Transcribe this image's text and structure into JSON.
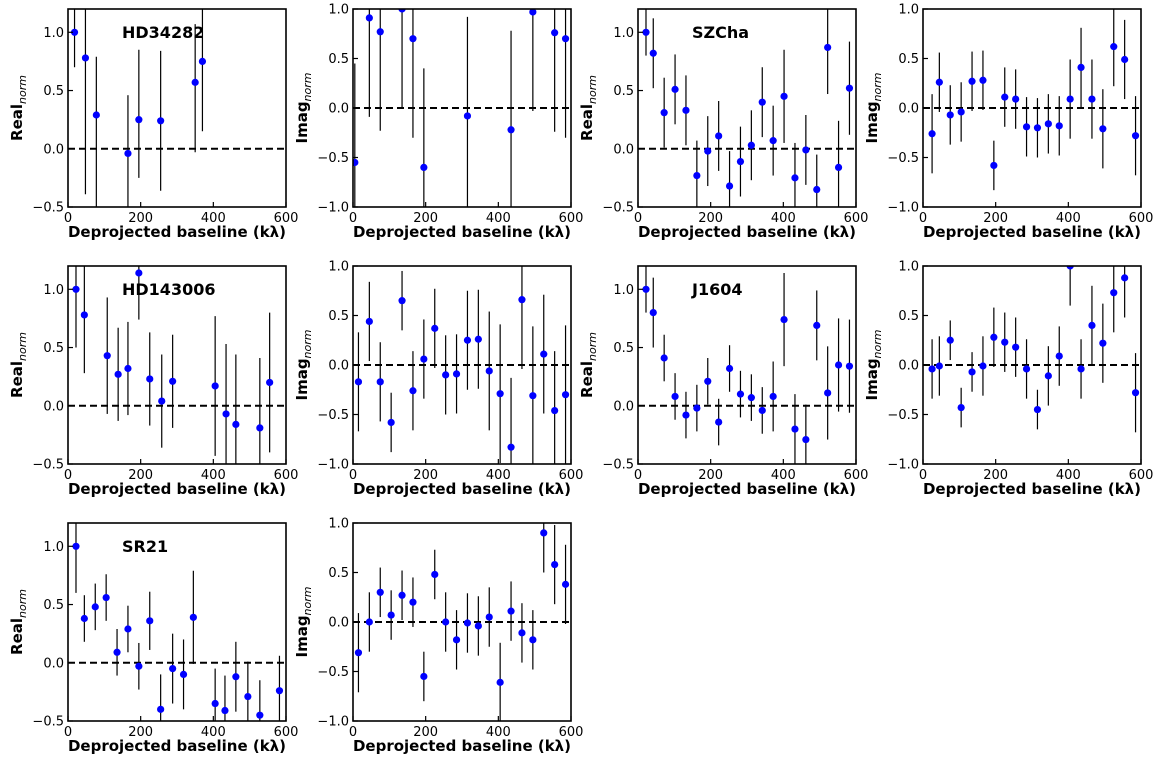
{
  "chart_data": [
    {
      "type": "scatter",
      "row": 0,
      "col": 0,
      "label": "HD34282",
      "ylabel": "Real",
      "ylabel_sub": "norm",
      "xlabel": "Deprojected baseline (kλ)",
      "xlim": [
        0,
        600
      ],
      "ylim": [
        -0.5,
        1.2
      ],
      "xticks": [
        0,
        200,
        400,
        600
      ],
      "yticks": [
        -0.5,
        0.0,
        0.5,
        1.0
      ],
      "xtick_labels": [
        "0",
        "200",
        "400",
        "600"
      ],
      "ytick_labels": [
        "−0.5",
        "0.0",
        "0.5",
        "1.0"
      ],
      "marker_color": "#0000ff",
      "x": [
        18,
        48,
        78,
        165,
        195,
        255,
        350,
        370
      ],
      "y": [
        1.0,
        0.78,
        0.29,
        -0.04,
        0.25,
        0.24,
        0.57,
        0.75
      ],
      "err_lo": [
        0.3,
        1.17,
        1.0,
        0.5,
        0.5,
        0.6,
        0.6,
        0.6
      ],
      "err_hi": [
        0.5,
        0.5,
        0.5,
        0.5,
        0.6,
        0.6,
        0.5,
        0.5
      ]
    },
    {
      "type": "scatter",
      "row": 0,
      "col": 1,
      "label": "",
      "ylabel": "Imag",
      "ylabel_sub": "norm",
      "xlabel": "Deprojected baseline (kλ)",
      "xlim": [
        0,
        600
      ],
      "ylim": [
        -1.0,
        1.0
      ],
      "xticks": [
        0,
        200,
        400,
        600
      ],
      "yticks": [
        -1.0,
        -0.5,
        0.0,
        0.5,
        1.0
      ],
      "xtick_labels": [
        "0",
        "200",
        "400",
        "600"
      ],
      "ytick_labels": [
        "−1.0",
        "−0.5",
        "0.0",
        "0.5",
        "1.0"
      ],
      "marker_color": "#0000ff",
      "x": [
        5,
        45,
        75,
        135,
        165,
        195,
        315,
        435,
        495,
        555,
        585
      ],
      "y": [
        -0.55,
        0.91,
        0.77,
        1.0,
        0.7,
        -0.6,
        -0.08,
        -0.22,
        0.97,
        0.76,
        0.7
      ],
      "err_lo": [
        1.0,
        1.0,
        1.0,
        1.0,
        1.0,
        1.0,
        1.0,
        1.0,
        1.0,
        1.0,
        1.0
      ],
      "err_hi": [
        1.0,
        1.0,
        1.0,
        1.0,
        1.0,
        1.0,
        1.0,
        1.0,
        1.0,
        1.0,
        1.0
      ]
    },
    {
      "type": "scatter",
      "row": 0,
      "col": 2,
      "label": "SZCha",
      "ylabel": "Real",
      "ylabel_sub": "norm",
      "xlabel": "Deprojected baseline (kλ)",
      "xlim": [
        0,
        600
      ],
      "ylim": [
        -0.5,
        1.2
      ],
      "xticks": [
        0,
        200,
        400,
        600
      ],
      "yticks": [
        -0.5,
        0.0,
        0.5,
        1.0
      ],
      "xtick_labels": [
        "0",
        "200",
        "400",
        "600"
      ],
      "ytick_labels": [
        "−0.5",
        "0.0",
        "0.5",
        "1.0"
      ],
      "marker_color": "#0000ff",
      "x": [
        22,
        42,
        72,
        102,
        132,
        162,
        192,
        222,
        252,
        282,
        312,
        342,
        372,
        402,
        432,
        462,
        492,
        522,
        552,
        582
      ],
      "y": [
        1.0,
        0.82,
        0.31,
        0.51,
        0.33,
        -0.23,
        -0.02,
        0.11,
        -0.32,
        -0.11,
        0.03,
        0.4,
        0.07,
        0.45,
        -0.25,
        -0.01,
        -0.35,
        0.87,
        -0.16,
        0.52
      ],
      "err_lo": [
        0.2,
        0.3,
        0.3,
        0.3,
        0.3,
        0.3,
        0.3,
        0.3,
        0.3,
        0.3,
        0.3,
        0.3,
        0.3,
        0.4,
        0.3,
        0.3,
        0.3,
        0.4,
        0.4,
        0.4
      ],
      "err_hi": [
        0.2,
        0.3,
        0.3,
        0.3,
        0.3,
        0.3,
        0.3,
        0.3,
        0.3,
        0.3,
        0.3,
        0.3,
        0.3,
        0.4,
        0.3,
        0.3,
        0.3,
        0.4,
        0.4,
        0.4
      ]
    },
    {
      "type": "scatter",
      "row": 0,
      "col": 3,
      "label": "",
      "ylabel": "Imag",
      "ylabel_sub": "norm",
      "xlabel": "Deprojected baseline (kλ)",
      "xlim": [
        0,
        600
      ],
      "ylim": [
        -1.0,
        1.0
      ],
      "xticks": [
        0,
        200,
        400,
        600
      ],
      "yticks": [
        -1.0,
        -0.5,
        0.0,
        0.5,
        1.0
      ],
      "xtick_labels": [
        "0",
        "200",
        "400",
        "600"
      ],
      "ytick_labels": [
        "−1.0",
        "−0.5",
        "0.0",
        "0.5",
        "1.0"
      ],
      "marker_color": "#0000ff",
      "x": [
        25,
        45,
        75,
        105,
        135,
        165,
        195,
        225,
        255,
        285,
        315,
        345,
        375,
        405,
        435,
        465,
        495,
        525,
        555,
        585
      ],
      "y": [
        -0.26,
        0.26,
        -0.07,
        -0.04,
        0.27,
        0.28,
        -0.58,
        0.11,
        0.09,
        -0.19,
        -0.2,
        -0.16,
        -0.18,
        0.09,
        0.41,
        0.09,
        -0.21,
        0.62,
        0.49,
        -0.28
      ],
      "err_lo": [
        0.4,
        0.3,
        0.3,
        0.3,
        0.3,
        0.3,
        0.25,
        0.3,
        0.3,
        0.3,
        0.3,
        0.3,
        0.3,
        0.4,
        0.4,
        0.4,
        0.4,
        0.4,
        0.4,
        0.4
      ],
      "err_hi": [
        0.4,
        0.3,
        0.3,
        0.3,
        0.3,
        0.3,
        0.25,
        0.3,
        0.3,
        0.3,
        0.3,
        0.3,
        0.3,
        0.4,
        0.4,
        0.4,
        0.4,
        0.4,
        0.4,
        0.4
      ]
    },
    {
      "type": "scatter",
      "row": 1,
      "col": 0,
      "label": "HD143006",
      "ylabel": "Real",
      "ylabel_sub": "norm",
      "xlabel": "Deprojected baseline (kλ)",
      "xlim": [
        0,
        600
      ],
      "ylim": [
        -0.5,
        1.2
      ],
      "xticks": [
        0,
        200,
        400,
        600
      ],
      "yticks": [
        -0.5,
        0.0,
        0.5,
        1.0
      ],
      "xtick_labels": [
        "0",
        "200",
        "400",
        "600"
      ],
      "ytick_labels": [
        "−0.5",
        "0.0",
        "0.5",
        "1.0"
      ],
      "marker_color": "#0000ff",
      "x": [
        22,
        45,
        108,
        138,
        165,
        195,
        225,
        258,
        288,
        405,
        435,
        462,
        528,
        555
      ],
      "y": [
        1.0,
        0.78,
        0.43,
        0.27,
        0.32,
        1.14,
        0.23,
        0.04,
        0.21,
        0.17,
        -0.07,
        -0.16,
        -0.19,
        0.2
      ],
      "err_lo": [
        0.5,
        0.5,
        0.5,
        0.4,
        0.4,
        0.4,
        0.4,
        0.4,
        0.4,
        0.6,
        0.6,
        0.6,
        0.6,
        0.6
      ],
      "err_hi": [
        0.5,
        0.5,
        0.5,
        0.4,
        0.4,
        0.4,
        0.4,
        0.4,
        0.4,
        0.6,
        0.6,
        0.6,
        0.6,
        0.6
      ]
    },
    {
      "type": "scatter",
      "row": 1,
      "col": 1,
      "label": "",
      "ylabel": "Imag",
      "ylabel_sub": "norm",
      "xlabel": "Deprojected baseline (kλ)",
      "xlim": [
        0,
        600
      ],
      "ylim": [
        -1.0,
        1.0
      ],
      "xticks": [
        0,
        200,
        400,
        600
      ],
      "yticks": [
        -1.0,
        -0.5,
        0.0,
        0.5,
        1.0
      ],
      "xtick_labels": [
        "0",
        "200",
        "400",
        "600"
      ],
      "ytick_labels": [
        "−1.0",
        "−0.5",
        "0.0",
        "0.5",
        "1.0"
      ],
      "marker_color": "#0000ff",
      "x": [
        15,
        45,
        75,
        105,
        135,
        165,
        195,
        225,
        255,
        285,
        315,
        345,
        375,
        405,
        435,
        465,
        495,
        525,
        555,
        585
      ],
      "y": [
        -0.17,
        0.44,
        -0.17,
        -0.58,
        0.65,
        -0.26,
        0.06,
        0.37,
        -0.1,
        -0.09,
        0.25,
        0.26,
        -0.06,
        -0.29,
        -0.83,
        0.66,
        -0.31,
        0.11,
        -0.46,
        -0.3
      ],
      "err_lo": [
        0.5,
        0.4,
        0.4,
        0.3,
        0.3,
        0.4,
        0.4,
        0.4,
        0.4,
        0.4,
        0.5,
        0.5,
        0.6,
        0.7,
        0.7,
        0.7,
        0.7,
        0.6,
        0.6,
        0.7
      ],
      "err_hi": [
        0.5,
        0.4,
        0.4,
        0.3,
        0.3,
        0.4,
        0.4,
        0.4,
        0.4,
        0.4,
        0.5,
        0.5,
        0.6,
        0.7,
        0.7,
        0.7,
        0.7,
        0.6,
        0.6,
        0.7
      ]
    },
    {
      "type": "scatter",
      "row": 1,
      "col": 2,
      "label": "J1604",
      "ylabel": "Real",
      "ylabel_sub": "norm",
      "xlabel": "Deprojected baseline (kλ)",
      "xlim": [
        0,
        600
      ],
      "ylim": [
        -0.5,
        1.2
      ],
      "xticks": [
        0,
        200,
        400,
        600
      ],
      "yticks": [
        -0.5,
        0.0,
        0.5,
        1.0
      ],
      "xtick_labels": [
        "0",
        "200",
        "400",
        "600"
      ],
      "ytick_labels": [
        "−0.5",
        "0.0",
        "0.5",
        "1.0"
      ],
      "marker_color": "#0000ff",
      "x": [
        22,
        42,
        72,
        102,
        132,
        162,
        192,
        222,
        252,
        282,
        312,
        342,
        372,
        402,
        432,
        462,
        492,
        522,
        552,
        582
      ],
      "y": [
        1.0,
        0.8,
        0.41,
        0.08,
        -0.08,
        -0.02,
        0.21,
        -0.14,
        0.32,
        0.1,
        0.07,
        -0.04,
        0.08,
        0.74,
        -0.2,
        -0.29,
        0.69,
        0.11,
        0.35,
        0.34
      ],
      "err_lo": [
        0.2,
        0.3,
        0.2,
        0.2,
        0.2,
        0.2,
        0.2,
        0.2,
        0.2,
        0.2,
        0.2,
        0.2,
        0.3,
        0.4,
        0.3,
        0.3,
        0.3,
        0.4,
        0.4,
        0.4
      ],
      "err_hi": [
        0.2,
        0.3,
        0.2,
        0.2,
        0.2,
        0.2,
        0.2,
        0.2,
        0.2,
        0.2,
        0.2,
        0.2,
        0.3,
        0.4,
        0.3,
        0.3,
        0.3,
        0.4,
        0.4,
        0.4
      ]
    },
    {
      "type": "scatter",
      "row": 1,
      "col": 3,
      "label": "",
      "ylabel": "Imag",
      "ylabel_sub": "norm",
      "xlabel": "Deprojected baseline (kλ)",
      "xlim": [
        0,
        600
      ],
      "ylim": [
        -1.0,
        1.0
      ],
      "xticks": [
        0,
        200,
        400,
        600
      ],
      "yticks": [
        -1.0,
        -0.5,
        0.0,
        0.5,
        1.0
      ],
      "xtick_labels": [
        "0",
        "200",
        "400",
        "600"
      ],
      "ytick_labels": [
        "−1.0",
        "−0.5",
        "0.0",
        "0.5",
        "1.0"
      ],
      "marker_color": "#0000ff",
      "x": [
        25,
        45,
        75,
        105,
        135,
        165,
        195,
        225,
        255,
        285,
        315,
        345,
        375,
        405,
        435,
        465,
        495,
        525,
        555,
        585
      ],
      "y": [
        -0.04,
        -0.01,
        0.25,
        -0.43,
        -0.07,
        -0.01,
        0.28,
        0.23,
        0.18,
        -0.04,
        -0.45,
        -0.11,
        0.09,
        1.0,
        -0.04,
        0.4,
        0.22,
        0.73,
        0.88,
        -0.28
      ],
      "err_lo": [
        0.3,
        0.3,
        0.2,
        0.2,
        0.2,
        0.3,
        0.3,
        0.3,
        0.3,
        0.3,
        0.2,
        0.3,
        0.3,
        0.4,
        0.3,
        0.4,
        0.4,
        0.4,
        0.4,
        0.4
      ],
      "err_hi": [
        0.3,
        0.3,
        0.2,
        0.2,
        0.2,
        0.3,
        0.3,
        0.3,
        0.3,
        0.3,
        0.2,
        0.3,
        0.3,
        0.4,
        0.3,
        0.4,
        0.4,
        0.4,
        0.4,
        0.4
      ]
    },
    {
      "type": "scatter",
      "row": 2,
      "col": 0,
      "label": "SR21",
      "ylabel": "Real",
      "ylabel_sub": "norm",
      "xlabel": "Deprojected baseline (kλ)",
      "xlim": [
        0,
        600
      ],
      "ylim": [
        -0.5,
        1.2
      ],
      "xticks": [
        0,
        200,
        400,
        600
      ],
      "yticks": [
        -0.5,
        0.0,
        0.5,
        1.0
      ],
      "xtick_labels": [
        "0",
        "200",
        "400",
        "600"
      ],
      "ytick_labels": [
        "−0.5",
        "0.0",
        "0.5",
        "1.0"
      ],
      "marker_color": "#0000ff",
      "x": [
        22,
        45,
        75,
        105,
        135,
        165,
        195,
        225,
        255,
        288,
        318,
        345,
        405,
        432,
        462,
        495,
        528,
        582
      ],
      "y": [
        1.0,
        0.38,
        0.48,
        0.56,
        0.09,
        0.29,
        -0.03,
        0.36,
        -0.4,
        -0.05,
        -0.1,
        0.39,
        -0.35,
        -0.41,
        -0.12,
        -0.29,
        -0.45,
        -0.24
      ],
      "err_lo": [
        0.4,
        0.2,
        0.2,
        0.2,
        0.2,
        0.2,
        0.2,
        0.25,
        0.3,
        0.3,
        0.3,
        0.4,
        0.3,
        0.3,
        0.3,
        0.3,
        0.3,
        0.3
      ],
      "err_hi": [
        0.4,
        0.2,
        0.2,
        0.2,
        0.2,
        0.2,
        0.2,
        0.25,
        0.3,
        0.3,
        0.3,
        0.4,
        0.3,
        0.3,
        0.3,
        0.3,
        0.3,
        0.3
      ]
    },
    {
      "type": "scatter",
      "row": 2,
      "col": 1,
      "label": "",
      "ylabel": "Imag",
      "ylabel_sub": "norm",
      "xlabel": "Deprojected baseline (kλ)",
      "xlim": [
        0,
        600
      ],
      "ylim": [
        -1.0,
        1.0
      ],
      "xticks": [
        0,
        200,
        400,
        600
      ],
      "yticks": [
        -1.0,
        -0.5,
        0.0,
        0.5,
        1.0
      ],
      "xtick_labels": [
        "0",
        "200",
        "400",
        "600"
      ],
      "ytick_labels": [
        "−1.0",
        "−0.5",
        "0.0",
        "0.5",
        "1.0"
      ],
      "marker_color": "#0000ff",
      "x": [
        15,
        45,
        75,
        105,
        135,
        165,
        195,
        225,
        255,
        285,
        315,
        345,
        375,
        405,
        435,
        465,
        495,
        525,
        555,
        585
      ],
      "y": [
        -0.31,
        0.0,
        0.3,
        0.07,
        0.27,
        0.2,
        -0.55,
        0.48,
        0.0,
        -0.18,
        -0.01,
        -0.04,
        0.05,
        -0.61,
        0.11,
        -0.11,
        -0.18,
        0.9,
        0.58,
        0.38
      ],
      "err_lo": [
        0.4,
        0.3,
        0.25,
        0.25,
        0.25,
        0.25,
        0.25,
        0.25,
        0.3,
        0.3,
        0.3,
        0.3,
        0.3,
        0.4,
        0.3,
        0.3,
        0.3,
        0.4,
        0.4,
        0.4
      ],
      "err_hi": [
        0.4,
        0.3,
        0.25,
        0.25,
        0.25,
        0.25,
        0.25,
        0.25,
        0.3,
        0.3,
        0.3,
        0.3,
        0.3,
        0.4,
        0.3,
        0.3,
        0.3,
        0.4,
        0.4,
        0.4
      ]
    }
  ]
}
